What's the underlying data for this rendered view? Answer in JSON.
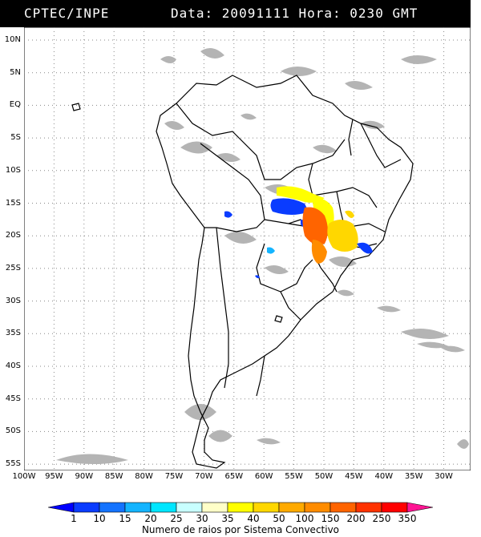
{
  "header": {
    "organization": "CPTEC/INPE",
    "datetime": "Data: 20091111 Hora: 0230 GMT"
  },
  "map": {
    "lat_labels": [
      "10N",
      "5N",
      "EQ",
      "5S",
      "10S",
      "15S",
      "20S",
      "25S",
      "30S",
      "35S",
      "40S",
      "45S",
      "50S",
      "55S"
    ],
    "lon_labels": [
      "100W",
      "95W",
      "90W",
      "85W",
      "80W",
      "75W",
      "70W",
      "65W",
      "60W",
      "55W",
      "50W",
      "45W",
      "40W",
      "35W",
      "30W"
    ],
    "grid": "dotted"
  },
  "legend": {
    "labels": [
      "1",
      "10",
      "15",
      "20",
      "25",
      "30",
      "35",
      "40",
      "50",
      "100",
      "150",
      "200",
      "250",
      "350"
    ],
    "colors": [
      "#0000ff",
      "#0a3cff",
      "#1473ff",
      "#14b4ff",
      "#00e6ff",
      "#c8ffff",
      "#ffffc8",
      "#ffff00",
      "#ffd700",
      "#ffaa00",
      "#ff8c00",
      "#ff6400",
      "#ff3200",
      "#ff0000",
      "#ff1493"
    ],
    "title": "Numero de raios por Sistema Convectivo"
  }
}
